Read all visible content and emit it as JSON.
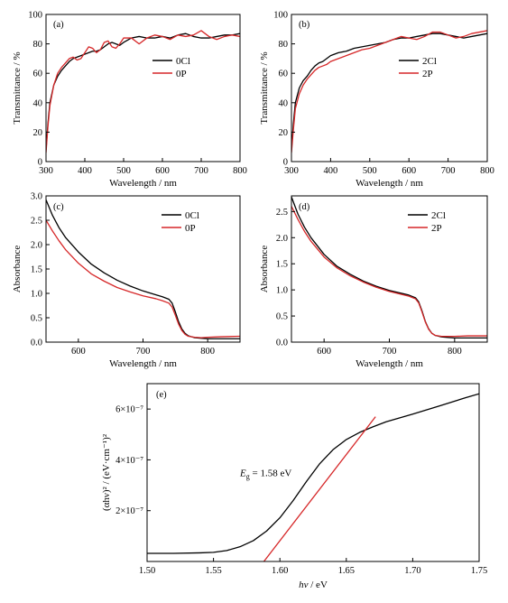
{
  "colors": {
    "black_series": "#000000",
    "red_series": "#d62728",
    "axis": "#000000"
  },
  "chart_data": [
    {
      "id": "a",
      "panel_label": "(a)",
      "type": "line",
      "xlabel": "Wavelength / nm",
      "ylabel": "Transmittance / %",
      "xlim": [
        300,
        800
      ],
      "ylim": [
        0,
        100
      ],
      "xticks": [
        300,
        400,
        500,
        600,
        700,
        800
      ],
      "yticks": [
        0,
        20,
        40,
        60,
        80,
        100
      ],
      "legend": "right",
      "grid": false,
      "series": [
        {
          "name": "0Cl",
          "color": "black",
          "x": [
            300,
            305,
            310,
            320,
            330,
            340,
            350,
            360,
            370,
            380,
            390,
            400,
            410,
            420,
            430,
            440,
            450,
            460,
            470,
            480,
            490,
            500,
            520,
            540,
            560,
            580,
            600,
            620,
            640,
            660,
            680,
            700,
            720,
            740,
            760,
            780,
            800
          ],
          "y": [
            8,
            26,
            40,
            52,
            58,
            62,
            65,
            68,
            70,
            71,
            72,
            73,
            74,
            75,
            75,
            76,
            78,
            80,
            81,
            80,
            79,
            81,
            84,
            85,
            84,
            84,
            85,
            84,
            86,
            87,
            85,
            84,
            84,
            85,
            86,
            86,
            87
          ]
        },
        {
          "name": "0P",
          "color": "red",
          "x": [
            300,
            305,
            310,
            320,
            330,
            340,
            350,
            360,
            370,
            380,
            390,
            400,
            410,
            420,
            430,
            440,
            450,
            460,
            470,
            480,
            490,
            500,
            520,
            540,
            560,
            580,
            600,
            620,
            640,
            660,
            680,
            700,
            720,
            740,
            760,
            780,
            800
          ],
          "y": [
            6,
            24,
            38,
            52,
            60,
            64,
            67,
            70,
            71,
            69,
            70,
            74,
            78,
            77,
            74,
            76,
            81,
            82,
            78,
            77,
            80,
            84,
            84,
            80,
            84,
            86,
            85,
            83,
            86,
            85,
            86,
            89,
            85,
            83,
            85,
            86,
            85
          ]
        }
      ]
    },
    {
      "id": "b",
      "panel_label": "(b)",
      "type": "line",
      "xlabel": "Wavelength / nm",
      "ylabel": "Transmittance / %",
      "xlim": [
        300,
        800
      ],
      "ylim": [
        0,
        100
      ],
      "xticks": [
        300,
        400,
        500,
        600,
        700,
        800
      ],
      "yticks": [
        0,
        20,
        40,
        60,
        80,
        100
      ],
      "legend": "right",
      "grid": false,
      "series": [
        {
          "name": "2Cl",
          "color": "black",
          "x": [
            300,
            305,
            310,
            320,
            330,
            340,
            350,
            360,
            370,
            380,
            390,
            400,
            420,
            440,
            460,
            480,
            500,
            520,
            540,
            560,
            580,
            600,
            620,
            640,
            660,
            680,
            700,
            720,
            740,
            760,
            780,
            800
          ],
          "y": [
            8,
            26,
            40,
            50,
            55,
            58,
            62,
            65,
            67,
            68,
            70,
            72,
            74,
            75,
            77,
            78,
            79,
            80,
            81,
            83,
            84,
            84,
            85,
            86,
            87,
            87,
            86,
            85,
            84,
            85,
            86,
            87
          ]
        },
        {
          "name": "2P",
          "color": "red",
          "x": [
            300,
            305,
            310,
            320,
            330,
            340,
            350,
            360,
            370,
            380,
            390,
            400,
            420,
            440,
            460,
            480,
            500,
            520,
            540,
            560,
            580,
            600,
            620,
            640,
            660,
            680,
            700,
            720,
            740,
            760,
            780,
            800
          ],
          "y": [
            6,
            22,
            36,
            46,
            52,
            56,
            59,
            62,
            64,
            65,
            66,
            68,
            70,
            72,
            74,
            76,
            77,
            79,
            81,
            83,
            85,
            84,
            83,
            85,
            88,
            88,
            86,
            84,
            85,
            87,
            88,
            89
          ]
        }
      ]
    },
    {
      "id": "c",
      "panel_label": "(c)",
      "type": "line",
      "xlabel": "Wavelength / nm",
      "ylabel": "Absorbance",
      "xlim": [
        550,
        850
      ],
      "ylim": [
        0,
        3.0
      ],
      "xticks": [
        600,
        700,
        800
      ],
      "yticks": [
        0.0,
        0.5,
        1.0,
        1.5,
        2.0,
        2.5,
        3.0
      ],
      "legend": "top-right",
      "grid": false,
      "series": [
        {
          "name": "0Cl",
          "color": "black",
          "x": [
            550,
            560,
            570,
            580,
            600,
            620,
            640,
            660,
            680,
            700,
            720,
            730,
            740,
            745,
            750,
            755,
            760,
            765,
            770,
            780,
            790,
            800,
            820,
            850
          ],
          "y": [
            2.92,
            2.6,
            2.35,
            2.15,
            1.85,
            1.6,
            1.42,
            1.27,
            1.15,
            1.05,
            0.97,
            0.93,
            0.88,
            0.8,
            0.62,
            0.42,
            0.27,
            0.18,
            0.13,
            0.09,
            0.08,
            0.07,
            0.07,
            0.07
          ]
        },
        {
          "name": "0P",
          "color": "red",
          "x": [
            550,
            560,
            570,
            580,
            600,
            620,
            640,
            660,
            680,
            700,
            720,
            730,
            740,
            745,
            750,
            755,
            760,
            765,
            770,
            780,
            790,
            800,
            820,
            850
          ],
          "y": [
            2.5,
            2.28,
            2.08,
            1.9,
            1.62,
            1.4,
            1.25,
            1.12,
            1.03,
            0.95,
            0.89,
            0.85,
            0.8,
            0.72,
            0.55,
            0.37,
            0.24,
            0.16,
            0.12,
            0.1,
            0.09,
            0.1,
            0.11,
            0.12
          ]
        }
      ]
    },
    {
      "id": "d",
      "panel_label": "(d)",
      "type": "line",
      "xlabel": "Wavelength / nm",
      "ylabel": "Absorbance",
      "xlim": [
        550,
        850
      ],
      "ylim": [
        0,
        2.8
      ],
      "xticks": [
        600,
        700,
        800
      ],
      "yticks": [
        0.0,
        0.5,
        1.0,
        1.5,
        2.0,
        2.5
      ],
      "legend": "top-right",
      "grid": false,
      "series": [
        {
          "name": "2Cl",
          "color": "black",
          "x": [
            550,
            560,
            570,
            580,
            600,
            620,
            640,
            660,
            680,
            700,
            720,
            730,
            740,
            745,
            750,
            755,
            760,
            765,
            770,
            780,
            790,
            800,
            820,
            850
          ],
          "y": [
            2.78,
            2.45,
            2.2,
            2.0,
            1.68,
            1.45,
            1.3,
            1.17,
            1.07,
            0.99,
            0.93,
            0.9,
            0.85,
            0.77,
            0.6,
            0.4,
            0.26,
            0.17,
            0.13,
            0.1,
            0.09,
            0.08,
            0.08,
            0.08
          ]
        },
        {
          "name": "2P",
          "color": "red",
          "x": [
            550,
            560,
            570,
            580,
            600,
            620,
            640,
            660,
            680,
            700,
            720,
            730,
            740,
            745,
            750,
            755,
            760,
            765,
            770,
            780,
            790,
            800,
            820,
            850
          ],
          "y": [
            2.6,
            2.35,
            2.12,
            1.93,
            1.63,
            1.42,
            1.27,
            1.15,
            1.05,
            0.97,
            0.91,
            0.88,
            0.83,
            0.75,
            0.58,
            0.39,
            0.25,
            0.17,
            0.13,
            0.11,
            0.11,
            0.11,
            0.12,
            0.12
          ]
        }
      ]
    },
    {
      "id": "e",
      "panel_label": "(e)",
      "type": "line",
      "xlabel": "hν / eV",
      "ylabel": "(αhν)² / (eV·cm⁻¹)²",
      "xlim": [
        1.5,
        1.75
      ],
      "ylim": [
        0,
        7e-07
      ],
      "xticks": [
        1.5,
        1.55,
        1.6,
        1.65,
        1.7,
        1.75
      ],
      "xtick_labels": [
        "1.50",
        "1.55",
        "1.60",
        "1.65",
        "1.70",
        "1.75"
      ],
      "yticks": [
        2e-07,
        4e-07,
        6e-07
      ],
      "ytick_labels": [
        "2×10⁻⁷",
        "4×10⁻⁷",
        "6×10⁻⁷"
      ],
      "annotation": {
        "symbol": "E",
        "subscript": "g",
        "rest": " = 1.58 eV",
        "x": 1.57,
        "y": 3.35e-07
      },
      "grid": false,
      "series": [
        {
          "color": "black",
          "x": [
            1.5,
            1.52,
            1.54,
            1.55,
            1.56,
            1.57,
            1.58,
            1.59,
            1.6,
            1.61,
            1.62,
            1.63,
            1.64,
            1.65,
            1.66,
            1.67,
            1.68,
            1.69,
            1.7,
            1.72,
            1.74,
            1.75
          ],
          "y": [
            3.2e-08,
            3.2e-08,
            3.4e-08,
            3.6e-08,
            4.3e-08,
            5.8e-08,
            8.2e-08,
            1.2e-07,
            1.72e-07,
            2.4e-07,
            3.15e-07,
            3.85e-07,
            4.4e-07,
            4.8e-07,
            5.08e-07,
            5.3e-07,
            5.5e-07,
            5.65e-07,
            5.8e-07,
            6.12e-07,
            6.45e-07,
            6.6e-07
          ]
        },
        {
          "color": "red",
          "x": [
            1.585,
            1.672
          ],
          "y": [
            -2e-08,
            5.7e-07
          ]
        }
      ]
    }
  ]
}
